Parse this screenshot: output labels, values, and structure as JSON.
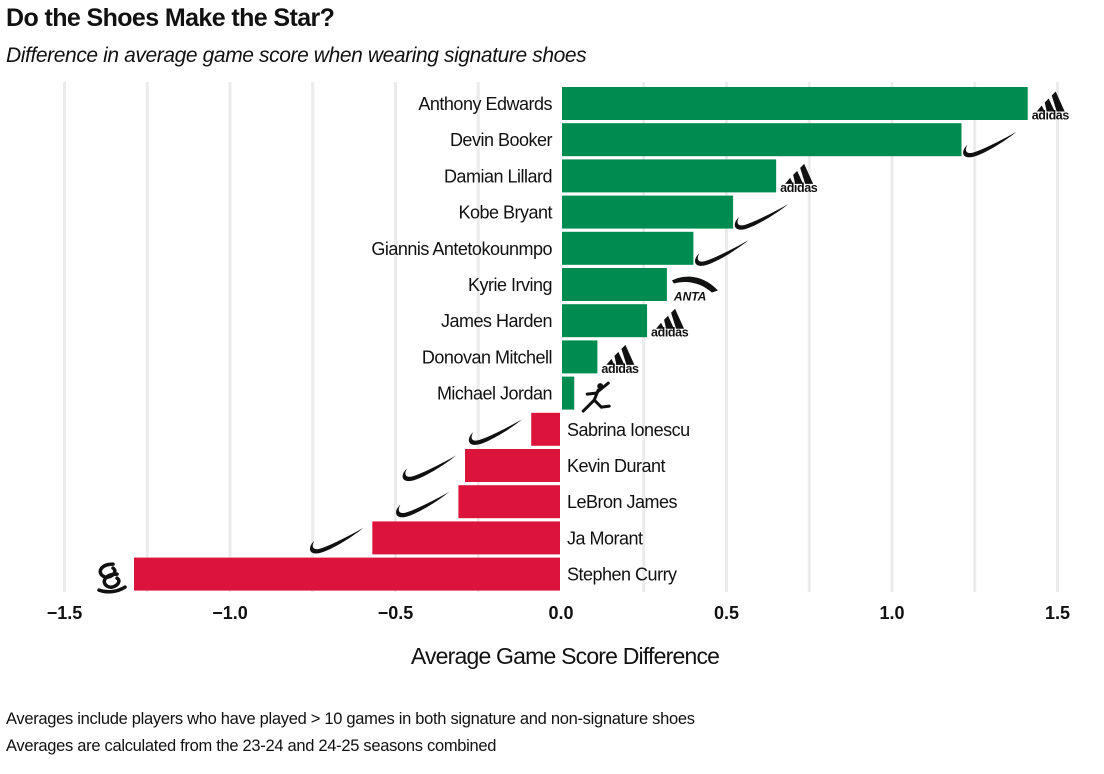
{
  "chart_data": {
    "type": "bar",
    "orientation": "horizontal",
    "title": "Do the Shoes Make the Star?",
    "subtitle": "Difference in average game score when wearing signature shoes",
    "xlabel": "Average Game Score Difference",
    "ylabel": "",
    "xlim": [
      -1.55,
      1.55
    ],
    "xticks": [
      -1.5,
      -1.0,
      -0.5,
      0.0,
      0.5,
      1.0,
      1.5
    ],
    "xtick_labels": [
      "−1.5",
      "−1.0",
      "−0.5",
      "0.0",
      "0.5",
      "1.0",
      "1.5"
    ],
    "grid": true,
    "positive_color": "#008c50",
    "negative_color": "#dc143c",
    "categories": [
      "Anthony Edwards",
      "Devin Booker",
      "Damian Lillard",
      "Kobe Bryant",
      "Giannis Antetokounmpo",
      "Kyrie Irving",
      "James Harden",
      "Donovan Mitchell",
      "Michael Jordan",
      "Sabrina Ionescu",
      "Kevin Durant",
      "LeBron James",
      "Ja Morant",
      "Stephen Curry"
    ],
    "values": [
      1.41,
      1.21,
      0.65,
      0.52,
      0.4,
      0.32,
      0.26,
      0.11,
      0.04,
      -0.09,
      -0.29,
      -0.31,
      -0.57,
      -1.29
    ],
    "brands": [
      "adidas",
      "nike",
      "adidas",
      "nike",
      "nike",
      "anta",
      "adidas",
      "adidas",
      "jordan",
      "nike",
      "nike",
      "nike",
      "nike",
      "curry"
    ],
    "brand_labels": {
      "adidas": "adidas",
      "anta": "ANTA"
    }
  },
  "notes": [
    "Averages include players who have played > 10 games in both signature and non-signature shoes",
    "Averages are calculated from the 23-24 and 24-25 seasons combined"
  ]
}
